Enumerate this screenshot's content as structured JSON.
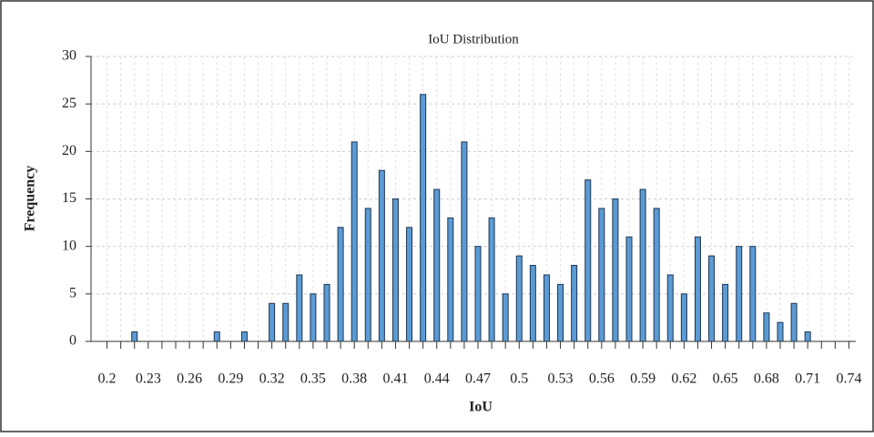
{
  "chart_data": {
    "type": "bar",
    "title": "IoU Distribution",
    "x_label": "IoU",
    "y_label": "Frequency",
    "categories": [
      "0.2",
      null,
      null,
      "0.23",
      null,
      null,
      "0.26",
      null,
      null,
      "0.29",
      null,
      null,
      "0.32",
      null,
      null,
      "0.35",
      null,
      null,
      "0.38",
      null,
      null,
      "0.41",
      null,
      null,
      "0.44",
      null,
      null,
      "0.47",
      null,
      null,
      "0.5",
      null,
      null,
      "0.53",
      null,
      null,
      "0.56",
      null,
      null,
      "0.59",
      null,
      null,
      "0.62",
      null,
      null,
      "0.65",
      null,
      null,
      "0.68",
      null,
      null,
      "0.71",
      null,
      null,
      "0.74"
    ],
    "values": [
      0,
      0,
      1,
      0,
      0,
      0,
      0,
      0,
      1,
      0,
      1,
      0,
      4,
      4,
      7,
      5,
      6,
      12,
      21,
      14,
      18,
      15,
      12,
      26,
      16,
      13,
      21,
      10,
      13,
      5,
      9,
      8,
      7,
      6,
      8,
      17,
      14,
      15,
      11,
      16,
      14,
      7,
      5,
      11,
      9,
      6,
      10,
      10,
      3,
      2,
      4,
      1,
      0,
      0,
      0
    ],
    "color": "#5b9bd5",
    "ylim": [
      0,
      30
    ],
    "yticks": [
      0,
      5,
      10,
      15,
      20,
      25,
      30
    ],
    "grid": true
  }
}
